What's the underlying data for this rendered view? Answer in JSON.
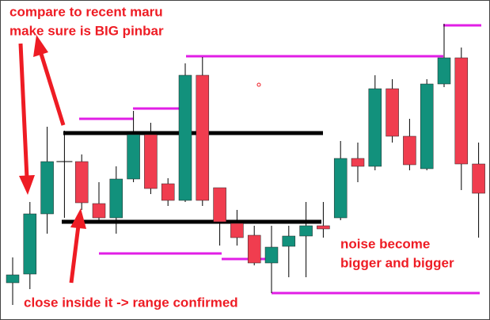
{
  "chart_data": {
    "type": "candlestick",
    "annotations": [
      "compare to recent maru",
      "make sure is BIG pinbar",
      "noise become",
      "bigger and bigger",
      "close inside it -> range confirmed"
    ],
    "categories": [
      null,
      null,
      null,
      null,
      null,
      null,
      null,
      null,
      null,
      null,
      null,
      null,
      null,
      null,
      null,
      null,
      null,
      null,
      null,
      null,
      null,
      null,
      null,
      null,
      null,
      null,
      null,
      null
    ],
    "open": [
      47,
      58,
      134,
      200,
      200,
      147,
      129,
      178,
      234,
      172,
      151,
      309,
      167,
      122,
      107,
      72,
      93,
      106,
      119,
      129,
      204,
      194,
      292,
      232,
      191,
      298,
      331,
      197
    ],
    "high": [
      79,
      149,
      244,
      239,
      209,
      174,
      194,
      264,
      249,
      179,
      324,
      332,
      167,
      139,
      119,
      119,
      119,
      149,
      149,
      226,
      224,
      309,
      304,
      254,
      304,
      374,
      344,
      224
    ],
    "low": [
      19,
      39,
      109,
      129,
      139,
      124,
      109,
      174,
      159,
      144,
      149,
      144,
      94,
      94,
      69,
      34,
      54,
      54,
      104,
      126,
      174,
      189,
      224,
      189,
      189,
      294,
      164,
      104
    ],
    "close": [
      57,
      134,
      200,
      200,
      148,
      129,
      178,
      234,
      166,
      151,
      309,
      151,
      124,
      104,
      72,
      92,
      106,
      119,
      115,
      204,
      194,
      292,
      232,
      196,
      298,
      331,
      197,
      160
    ],
    "ylim": [
      0,
      404
    ],
    "up_color": "#12917c",
    "down_color": "#f03d4f"
  }
}
